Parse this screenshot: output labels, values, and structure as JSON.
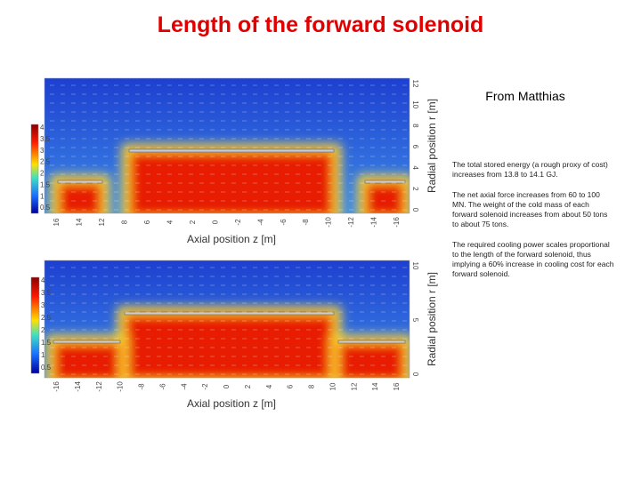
{
  "title": "Length of the forward solenoid",
  "note": {
    "heading": "From Matthias",
    "paragraphs": [
      "The total stored energy (a rough proxy of cost) increases from 13.8 to 14.1 GJ.",
      "The net axial force increases from 60 to 100 MN. The weight of the cold mass of each forward solenoid increases from about 50 tons to about 75 tons.",
      "The required cooling power scales proportional to the length of the forward solenoid, thus implying a 60% increase in cooling cost for each forward solenoid."
    ]
  },
  "figures": [
    {
      "colorbar": [
        "4",
        "3.5",
        "3",
        "2.5",
        "2",
        "1.5",
        "1",
        "0.5"
      ],
      "x_ticks": [
        "16",
        "14",
        "12",
        "8",
        "6",
        "4",
        "2",
        "0",
        "-2",
        "-4",
        "-6",
        "-8",
        "-10",
        "-12",
        "-14",
        "-16"
      ],
      "r_ticks": [
        "12",
        "10",
        "8",
        "6",
        "4",
        "2",
        "0"
      ],
      "x_label": "Axial position z [m]",
      "r_label": "Radial position r [m]"
    },
    {
      "colorbar": [
        "4",
        "3.5",
        "3",
        "2.5",
        "2",
        "1.5",
        "1",
        "0.5"
      ],
      "x_ticks": [
        "-16",
        "-14",
        "-12",
        "-10",
        "-8",
        "-6",
        "-4",
        "-2",
        "0",
        "2",
        "4",
        "6",
        "8",
        "10",
        "12",
        "14",
        "16"
      ],
      "r_ticks": [
        "10",
        "5",
        "0"
      ],
      "x_label": "Axial position z [m]",
      "r_label": "Radial position r [m]"
    }
  ]
}
